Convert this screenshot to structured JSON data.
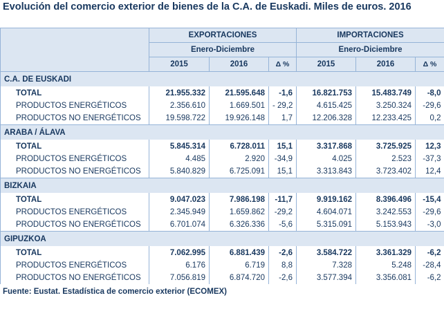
{
  "title": "Evolución del comercio exterior de bienes de la C.A. de Euskadi. Miles de euros. 2016",
  "header": {
    "exports": "EXPORTACIONES",
    "imports": "IMPORTACIONES",
    "exports_period": "Enero-Diciembre",
    "imports_period": "Enero-Diciembre",
    "columns": [
      "2015",
      "2016",
      "Δ %",
      "2015",
      "2016",
      "Δ %"
    ]
  },
  "sections": [
    {
      "name": "C.A. DE EUSKADI",
      "rows": [
        [
          "TOTAL",
          "21.955.332",
          "21.595.648",
          "-1,6",
          "16.821.753",
          "15.483.749",
          "-8,0"
        ],
        [
          "PRODUCTOS ENERGÉTICOS",
          "2.356.610",
          "1.669.501",
          "- 29,2",
          "4.615.425",
          "3.250.324",
          "-29,6"
        ],
        [
          "PRODUCTOS NO ENERGÉTICOS",
          "19.598.722",
          "19.926.148",
          "1,7",
          "12.206.328",
          "12.233.425",
          "0,2"
        ]
      ]
    },
    {
      "name": "ARABA / ÁLAVA",
      "rows": [
        [
          "TOTAL",
          "5.845.314",
          "6.728.011",
          "15,1",
          "3.317.868",
          "3.725.925",
          "12,3"
        ],
        [
          "PRODUCTOS ENERGÉTICOS",
          "4.485",
          "2.920",
          "-34,9",
          "4.025",
          "2.523",
          "-37,3"
        ],
        [
          "PRODUCTOS NO ENERGÉTICOS",
          "5.840.829",
          "6.725.091",
          "15,1",
          "3.313.843",
          "3.723.402",
          "12,4"
        ]
      ]
    },
    {
      "name": "BIZKAIA",
      "rows": [
        [
          "TOTAL",
          "9.047.023",
          "7.986.198",
          "-11,7",
          "9.919.162",
          "8.396.496",
          "-15,4"
        ],
        [
          "PRODUCTOS ENERGÉTICOS",
          "2.345.949",
          "1.659.862",
          "-29,2",
          "4.604.071",
          "3.242.553",
          "-29,6"
        ],
        [
          "PRODUCTOS NO ENERGÉTICOS",
          "6.701.074",
          "6.326.336",
          "-5,6",
          "5.315.091",
          "5.153.943",
          "-3,0"
        ]
      ]
    },
    {
      "name": "GIPUZKOA",
      "rows": [
        [
          "TOTAL",
          "7.062.995",
          "6.881.439",
          "-2,6",
          "3.584.722",
          "3.361.329",
          "-6,2"
        ],
        [
          "PRODUCTOS ENERGÉTICOS",
          "6.176",
          "6.719",
          "8,8",
          "7.328",
          "5.248",
          "-28,4"
        ],
        [
          "PRODUCTOS NO ENERGÉTICOS",
          "7.056.819",
          "6.874.720",
          "-2,6",
          "3.577.394",
          "3.356.081",
          "-6,2"
        ]
      ]
    }
  ],
  "footer": "Fuente: Eustat. Estadística de comercio exterior (ECOMEX)"
}
